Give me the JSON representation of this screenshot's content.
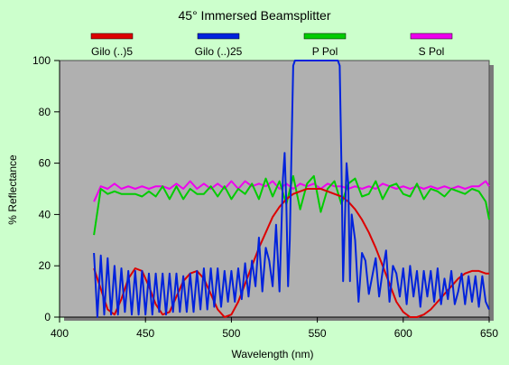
{
  "chart_data": {
    "type": "line",
    "title": "45° Immersed Beamsplitter",
    "xlabel": "Wavelength (nm)",
    "ylabel": "% Reflectance",
    "xlim": [
      400,
      650
    ],
    "ylim": [
      0,
      100
    ],
    "x_ticks": [
      "400",
      "450",
      "500",
      "550",
      "600",
      "650"
    ],
    "y_ticks": [
      "0",
      "20",
      "40",
      "60",
      "80",
      "100"
    ],
    "legend_position": "top",
    "grid": false,
    "plot_background": "#b0b0b0",
    "series": [
      {
        "name": "Gilo (..)5",
        "color": "#dd0000",
        "x": [
          420,
          424,
          428,
          432,
          436,
          440,
          444,
          448,
          452,
          456,
          460,
          464,
          468,
          472,
          476,
          480,
          484,
          488,
          492,
          496,
          500,
          504,
          508,
          512,
          516,
          520,
          524,
          528,
          532,
          536,
          540,
          544,
          548,
          552,
          556,
          560,
          564,
          568,
          572,
          576,
          580,
          584,
          588,
          592,
          596,
          600,
          604,
          608,
          612,
          616,
          620,
          624,
          628,
          632,
          636,
          640,
          644,
          648,
          650
        ],
        "values": [
          19,
          11,
          3,
          1,
          7,
          15,
          19,
          18,
          12,
          5,
          1,
          2,
          8,
          14,
          17,
          18,
          15,
          9,
          3,
          0,
          1,
          6,
          13,
          20,
          27,
          33,
          39,
          43,
          46,
          48,
          49,
          50,
          50,
          50,
          49,
          48,
          47,
          45,
          42,
          38,
          33,
          27,
          20,
          13,
          6,
          2,
          0,
          0,
          1,
          3,
          6,
          9,
          12,
          15,
          17,
          18,
          18,
          17,
          17
        ]
      },
      {
        "name": "Gilo (..)25",
        "color": "#0022dd",
        "x": [
          420,
          422,
          424,
          426,
          428,
          430,
          432,
          434,
          436,
          438,
          440,
          442,
          444,
          446,
          448,
          450,
          452,
          454,
          456,
          458,
          460,
          462,
          464,
          466,
          468,
          470,
          472,
          474,
          476,
          478,
          480,
          482,
          484,
          486,
          488,
          490,
          492,
          494,
          496,
          498,
          500,
          502,
          504,
          506,
          508,
          510,
          512,
          514,
          516,
          518,
          520,
          522,
          524,
          526,
          528,
          530,
          531,
          532,
          533,
          534,
          535,
          536,
          537,
          538,
          540,
          542,
          544,
          546,
          548,
          550,
          552,
          554,
          556,
          558,
          560,
          562,
          563,
          564,
          565,
          566,
          567,
          568,
          569,
          570,
          572,
          574,
          576,
          578,
          580,
          582,
          584,
          586,
          588,
          590,
          592,
          594,
          596,
          598,
          600,
          602,
          604,
          606,
          608,
          610,
          612,
          614,
          616,
          618,
          620,
          622,
          624,
          626,
          628,
          630,
          632,
          634,
          636,
          638,
          640,
          642,
          644,
          646,
          648,
          650
        ],
        "values": [
          25,
          0,
          24,
          1,
          23,
          1,
          20,
          1,
          19,
          2,
          18,
          1,
          18,
          1,
          18,
          1,
          17,
          1,
          17,
          2,
          17,
          1,
          17,
          2,
          17,
          2,
          16,
          2,
          17,
          2,
          18,
          3,
          19,
          3,
          19,
          4,
          19,
          4,
          18,
          6,
          18,
          6,
          19,
          7,
          21,
          8,
          22,
          12,
          31,
          10,
          27,
          22,
          12,
          36,
          10,
          54,
          64,
          44,
          12,
          30,
          65,
          98,
          100,
          100,
          100,
          100,
          100,
          100,
          100,
          100,
          100,
          100,
          100,
          100,
          100,
          100,
          98,
          60,
          14,
          37,
          60,
          52,
          14,
          40,
          30,
          6,
          25,
          22,
          9,
          16,
          23,
          8,
          18,
          26,
          6,
          20,
          17,
          8,
          19,
          5,
          20,
          8,
          18,
          4,
          18,
          8,
          18,
          6,
          19,
          5,
          15,
          7,
          18,
          5,
          10,
          17,
          5,
          16,
          6,
          16,
          4,
          16,
          6,
          3
        ]
      },
      {
        "name": "P Pol",
        "color": "#00cc00",
        "x": [
          420,
          424,
          428,
          432,
          436,
          440,
          444,
          448,
          452,
          456,
          460,
          464,
          468,
          472,
          476,
          480,
          484,
          488,
          492,
          496,
          500,
          504,
          508,
          512,
          516,
          520,
          524,
          528,
          532,
          536,
          540,
          544,
          548,
          552,
          556,
          560,
          564,
          568,
          572,
          576,
          580,
          584,
          588,
          592,
          596,
          600,
          604,
          608,
          612,
          616,
          620,
          624,
          628,
          632,
          636,
          640,
          644,
          648,
          650
        ],
        "values": [
          32,
          50,
          48,
          49,
          48,
          48,
          48,
          47,
          49,
          47,
          51,
          46,
          51,
          46,
          50,
          48,
          48,
          51,
          47,
          51,
          46,
          50,
          48,
          52,
          46,
          54,
          47,
          53,
          44,
          55,
          42,
          52,
          55,
          41,
          50,
          53,
          44,
          52,
          54,
          47,
          48,
          53,
          46,
          51,
          52,
          48,
          47,
          52,
          46,
          50,
          49,
          47,
          50,
          49,
          48,
          50,
          49,
          45,
          38
        ]
      },
      {
        "name": "S Pol",
        "color": "#ee00ee",
        "x": [
          420,
          424,
          428,
          432,
          436,
          440,
          444,
          448,
          452,
          456,
          460,
          464,
          468,
          472,
          476,
          480,
          484,
          488,
          492,
          496,
          500,
          504,
          508,
          512,
          516,
          520,
          524,
          528,
          532,
          536,
          540,
          544,
          548,
          552,
          556,
          560,
          564,
          568,
          572,
          576,
          580,
          584,
          588,
          592,
          596,
          600,
          604,
          608,
          612,
          616,
          620,
          624,
          628,
          632,
          636,
          640,
          644,
          648,
          650
        ],
        "values": [
          45,
          51,
          50,
          52,
          50,
          51,
          50,
          51,
          50,
          51,
          51,
          50,
          52,
          50,
          53,
          50,
          52,
          50,
          52,
          50,
          53,
          50,
          53,
          51,
          52,
          51,
          53,
          50,
          52,
          50,
          52,
          51,
          52,
          50,
          52,
          51,
          51,
          50,
          51,
          50,
          51,
          50,
          52,
          51,
          50,
          51,
          50,
          51,
          50,
          51,
          50,
          51,
          50,
          51,
          50,
          51,
          51,
          53,
          51
        ]
      }
    ]
  }
}
